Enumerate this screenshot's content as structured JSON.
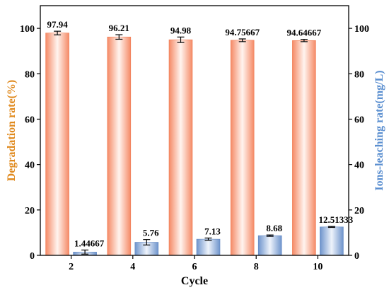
{
  "chart_data": {
    "type": "bar",
    "xlabel": "Cycle",
    "ylabel_left": "Degradation rate(%)",
    "ylabel_right": "Ions-leaching rate(mg/L)",
    "categories": [
      "2",
      "4",
      "6",
      "8",
      "10"
    ],
    "ylim_left": [
      0,
      110
    ],
    "ylim_right": [
      0,
      110
    ],
    "yticks_left": [
      0,
      20,
      40,
      60,
      80,
      100
    ],
    "yticks_right": [
      0,
      20,
      40,
      60,
      80,
      100
    ],
    "grid": false,
    "series": [
      {
        "axis": "left",
        "color": "#f4906e",
        "values": [
          97.94,
          96.21,
          94.98,
          94.75667,
          94.64667
        ],
        "errors": [
          0.8,
          1.0,
          1.2,
          0.6,
          0.5
        ],
        "labels": [
          "97.94",
          "96.21",
          "94.98",
          "94.75667",
          "94.64667"
        ]
      },
      {
        "axis": "right",
        "color": "#6f95cc",
        "values": [
          1.44667,
          5.76,
          7.13,
          8.68,
          12.51333
        ],
        "errors": [
          0.9,
          1.2,
          0.5,
          0.3,
          0.2
        ],
        "labels": [
          "1.44667",
          "5.76",
          "7.13",
          "8.68",
          "12.51333"
        ]
      }
    ],
    "colors": {
      "left_axis_title": "#e08a1e",
      "right_axis_title": "#5b8fd0"
    }
  }
}
